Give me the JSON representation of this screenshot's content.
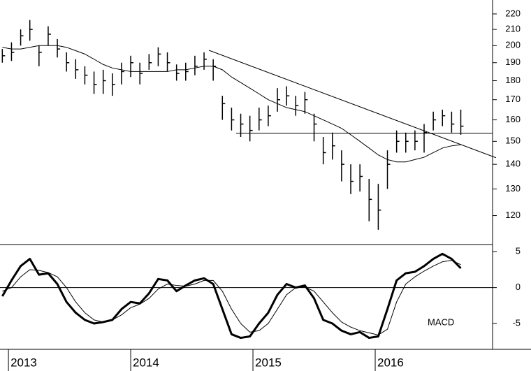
{
  "chart_data": [
    {
      "type": "ohlc",
      "x": [
        2012.95,
        2013.025,
        2013.1,
        2013.175,
        2013.25,
        2013.325,
        2013.4,
        2013.475,
        2013.55,
        2013.625,
        2013.7,
        2013.775,
        2013.85,
        2013.925,
        2014.0,
        2014.075,
        2014.15,
        2014.225,
        2014.3,
        2014.375,
        2014.45,
        2014.525,
        2014.6,
        2014.675,
        2014.75,
        2014.825,
        2014.9,
        2014.975,
        2015.05,
        2015.125,
        2015.2,
        2015.275,
        2015.35,
        2015.425,
        2015.5,
        2015.575,
        2015.65,
        2015.725,
        2015.8,
        2015.875,
        2015.95,
        2016.025,
        2016.1,
        2016.175,
        2016.25,
        2016.325,
        2016.4,
        2016.475,
        2016.55,
        2016.625,
        2016.7
      ],
      "high": [
        198,
        202,
        210,
        216,
        200,
        212,
        204,
        196,
        192,
        188,
        185,
        186,
        184,
        190,
        194,
        190,
        195,
        199,
        196,
        189,
        190,
        194,
        196,
        192,
        172,
        166,
        163,
        162,
        166,
        167,
        176,
        177,
        172,
        174,
        163,
        152,
        154,
        146,
        140,
        140,
        134,
        132,
        146,
        155,
        154,
        155,
        158,
        164,
        165,
        164,
        165
      ],
      "low": [
        190,
        191,
        200,
        203,
        188,
        200,
        193,
        185,
        181,
        178,
        173,
        173,
        172,
        178,
        182,
        178,
        186,
        188,
        185,
        180,
        180,
        183,
        186,
        180,
        160,
        155,
        152,
        150,
        155,
        157,
        164,
        167,
        162,
        163,
        150,
        140,
        142,
        133,
        128,
        129,
        118,
        115,
        130,
        145,
        145,
        146,
        145,
        155,
        157,
        154,
        153
      ],
      "close": [
        194,
        196,
        206,
        210,
        196,
        207,
        198,
        190,
        186,
        183,
        178,
        180,
        178,
        185,
        190,
        184,
        190,
        195,
        190,
        184,
        185,
        188,
        192,
        188,
        168,
        160,
        158,
        155,
        160,
        162,
        170,
        172,
        167,
        170,
        158,
        145,
        148,
        140,
        133,
        135,
        126,
        122,
        140,
        150,
        150,
        150,
        154,
        160,
        162,
        158,
        157
      ],
      "ma": [
        199,
        198,
        198,
        199,
        200,
        200,
        200,
        199,
        197,
        195,
        192,
        189,
        187,
        186,
        185,
        185,
        185,
        185,
        185,
        186,
        186,
        187,
        188,
        188,
        186,
        182,
        179,
        176,
        173,
        170,
        168,
        166,
        165,
        164,
        162,
        160,
        158,
        156,
        153,
        150,
        147,
        144,
        142,
        141,
        141,
        142,
        143,
        145,
        147,
        148,
        148.5
      ],
      "color": "#000000",
      "log_scale": true,
      "xlim": [
        2012.931,
        2016.96
      ],
      "xticks": [
        2013,
        2014,
        2015,
        2016
      ],
      "ylim": [
        110,
        229.4
      ],
      "yticks": [
        120,
        130,
        140,
        150,
        160,
        170,
        180,
        190,
        200,
        210,
        220
      ],
      "trendlines": [
        {
          "x": [
            2014.64,
            2016.988
          ],
          "y": [
            197.2,
            142.8
          ]
        },
        {
          "x": [
            2014.862,
            2016.96
          ],
          "y": [
            153.7,
            153.7
          ]
        }
      ]
    },
    {
      "type": "line",
      "annotation": "MACD",
      "x": [
        2012.95,
        2013.025,
        2013.1,
        2013.175,
        2013.25,
        2013.325,
        2013.4,
        2013.475,
        2013.55,
        2013.625,
        2013.7,
        2013.775,
        2013.85,
        2013.925,
        2014.0,
        2014.075,
        2014.15,
        2014.225,
        2014.3,
        2014.375,
        2014.45,
        2014.525,
        2014.6,
        2014.675,
        2014.75,
        2014.825,
        2014.9,
        2014.975,
        2015.05,
        2015.125,
        2015.2,
        2015.275,
        2015.35,
        2015.425,
        2015.5,
        2015.575,
        2015.65,
        2015.725,
        2015.8,
        2015.875,
        2015.95,
        2016.025,
        2016.1,
        2016.175,
        2016.25,
        2016.325,
        2016.4,
        2016.475,
        2016.55,
        2016.625,
        2016.7
      ],
      "series": [
        {
          "color": "#000000",
          "width": 3,
          "values": [
            -1.2,
            1,
            3,
            4,
            1.8,
            2,
            0.5,
            -2,
            -3.5,
            -4.5,
            -5,
            -4.8,
            -4.5,
            -3,
            -2,
            -2.2,
            -0.8,
            1.2,
            1,
            -0.5,
            0.3,
            1,
            1.3,
            0.5,
            -3,
            -6.5,
            -7,
            -6.8,
            -5,
            -3.5,
            -1,
            0.5,
            0,
            0.3,
            -1.5,
            -4.5,
            -5,
            -6,
            -6.5,
            -6.2,
            -7,
            -6.8,
            -3,
            1,
            2,
            2.2,
            3,
            4,
            4.7,
            4,
            2.7
          ]
        },
        {
          "color": "#000000",
          "width": 1,
          "values": [
            -0.5,
            0,
            1.5,
            2.5,
            2.4,
            2.1,
            1.5,
            0,
            -2,
            -3.5,
            -4.5,
            -4.8,
            -4.5,
            -3.8,
            -2.8,
            -2.3,
            -1.5,
            -0.2,
            0.5,
            0.3,
            0.2,
            0.5,
            1,
            1,
            -0.5,
            -3,
            -5,
            -6.2,
            -6,
            -5,
            -3,
            -1,
            0,
            0.1,
            -0.5,
            -2,
            -3.5,
            -4.8,
            -5.5,
            -6,
            -6.3,
            -6.6,
            -5.8,
            -2,
            0.5,
            1.5,
            2.3,
            3,
            3.6,
            3.8,
            3.2
          ]
        }
      ],
      "xlim": [
        2012.931,
        2016.96
      ],
      "ylim": [
        -8.6,
        6
      ],
      "yticks": [
        -5,
        0,
        5
      ],
      "zero_line": true
    }
  ]
}
